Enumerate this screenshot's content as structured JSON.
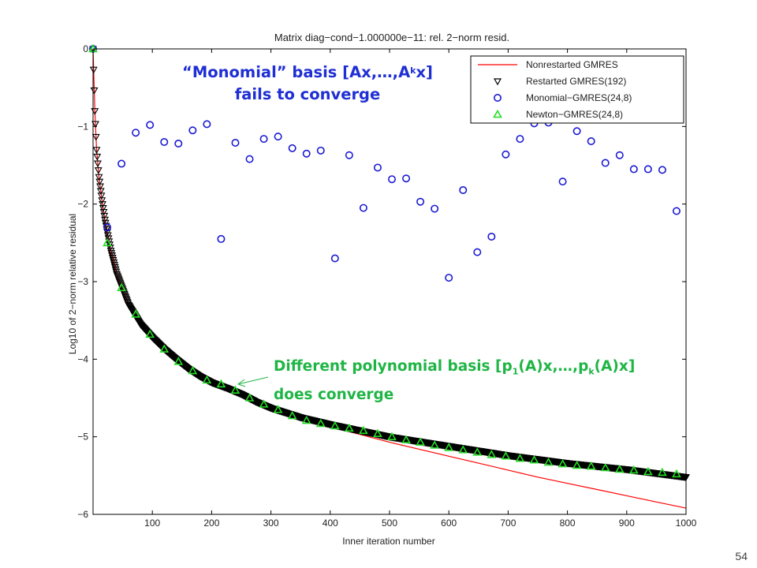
{
  "slide_number": "54",
  "annotations": {
    "monomial_line1_pre": "“Monomial” basis [Ax,…,A",
    "monomial_line1_sup": "k",
    "monomial_line1_post": "x]",
    "monomial_line2": "fails to converge",
    "newton_line1_pre": "Different polynomial basis  [p",
    "newton_line1_sub1": "1",
    "newton_line1_mid": "(A)x,…,p",
    "newton_line1_sub2": "k",
    "newton_line1_post": "(A)x]",
    "newton_line2": "does converge"
  },
  "colors": {
    "nonrestarted": "#ff0000",
    "restarted": "#000000",
    "monomial": "#1a1ad4",
    "newton": "#22dd22",
    "monomial_annotation": "#1f2fd4",
    "newton_annotation": "#1fb545"
  },
  "chart_data": {
    "type": "line",
    "title": "Matrix diag−cond−1.000000e−11: rel. 2−norm resid.",
    "xlabel": "Inner iteration number",
    "ylabel": "Log10 of 2−norm relative residual",
    "xlim": [
      0,
      1000
    ],
    "ylim": [
      -6,
      0
    ],
    "xticks": [
      100,
      200,
      300,
      400,
      500,
      600,
      700,
      800,
      900,
      1000
    ],
    "yticks": [
      0,
      -1,
      -2,
      -3,
      -4,
      -5,
      -6
    ],
    "xtick_labels": [
      "100",
      "200",
      "300",
      "400",
      "500",
      "600",
      "700",
      "800",
      "900",
      "1000"
    ],
    "ytick_labels": [
      "0",
      "−1",
      "−2",
      "−3",
      "−4",
      "−5",
      "−6"
    ],
    "grid": false,
    "legend_position": "top-right",
    "series": [
      {
        "name": "Nonrestarted GMRES",
        "marker": "line",
        "x": [
          0,
          3,
          6,
          10,
          15,
          20,
          30,
          40,
          50,
          60,
          80,
          100,
          120,
          140,
          160,
          180,
          200,
          225,
          250,
          275,
          300,
          350,
          400,
          450,
          500,
          550,
          600,
          650,
          700,
          750,
          800,
          850,
          900,
          950,
          1000
        ],
        "y": [
          0,
          -0.8,
          -1.3,
          -1.65,
          -1.95,
          -2.2,
          -2.6,
          -2.9,
          -3.1,
          -3.3,
          -3.55,
          -3.72,
          -3.87,
          -4.0,
          -4.12,
          -4.22,
          -4.3,
          -4.37,
          -4.45,
          -4.55,
          -4.63,
          -4.75,
          -4.87,
          -4.97,
          -5.07,
          -5.16,
          -5.25,
          -5.34,
          -5.43,
          -5.52,
          -5.6,
          -5.68,
          -5.76,
          -5.84,
          -5.92
        ]
      },
      {
        "name": "Restarted GMRES(192)",
        "marker": "triangle-down",
        "x": [
          0,
          3,
          6,
          10,
          15,
          20,
          30,
          40,
          50,
          60,
          80,
          100,
          120,
          140,
          160,
          180,
          200,
          225,
          250,
          275,
          300,
          350,
          400,
          450,
          500,
          550,
          600,
          650,
          700,
          750,
          800,
          850,
          900,
          950,
          1000
        ],
        "y": [
          0,
          -0.8,
          -1.3,
          -1.65,
          -1.95,
          -2.2,
          -2.6,
          -2.9,
          -3.1,
          -3.3,
          -3.55,
          -3.72,
          -3.87,
          -4.0,
          -4.12,
          -4.22,
          -4.3,
          -4.37,
          -4.45,
          -4.55,
          -4.63,
          -4.75,
          -4.84,
          -4.92,
          -5.0,
          -5.06,
          -5.12,
          -5.18,
          -5.24,
          -5.29,
          -5.34,
          -5.38,
          -5.42,
          -5.47,
          -5.52
        ]
      },
      {
        "name": "Monomial−GMRES(24,8)",
        "marker": "circle",
        "x": [
          0,
          24,
          48,
          72,
          96,
          120,
          144,
          168,
          192,
          216,
          240,
          264,
          288,
          312,
          336,
          360,
          384,
          408,
          432,
          456,
          480,
          504,
          528,
          552,
          576,
          600,
          624,
          648,
          672,
          696,
          720,
          744,
          768,
          792,
          816,
          840,
          864,
          888,
          912,
          936,
          960,
          984
        ],
        "y": [
          0,
          -2.3,
          -1.48,
          -1.08,
          -0.98,
          -1.2,
          -1.22,
          -1.05,
          -0.97,
          -2.45,
          -1.21,
          -1.42,
          -1.16,
          -1.13,
          -1.28,
          -1.35,
          -1.31,
          -2.7,
          -1.37,
          -2.05,
          -1.53,
          -1.68,
          -1.67,
          -1.97,
          -2.06,
          -2.95,
          -1.82,
          -2.62,
          -2.42,
          -1.36,
          -1.16,
          -0.96,
          -0.95,
          -1.71,
          -1.06,
          -1.19,
          -1.47,
          -1.37,
          -1.55,
          -1.55,
          -1.56,
          -2.09
        ]
      },
      {
        "name": "Newton−GMRES(24,8)",
        "marker": "triangle-up",
        "x": [
          0,
          24,
          48,
          72,
          96,
          120,
          144,
          168,
          192,
          216,
          240,
          264,
          288,
          312,
          336,
          360,
          384,
          408,
          432,
          456,
          480,
          504,
          528,
          552,
          576,
          600,
          624,
          648,
          672,
          696,
          720,
          744,
          768,
          792,
          816,
          840,
          864,
          888,
          912,
          936,
          960,
          984
        ],
        "y": [
          0,
          -2.5,
          -3.08,
          -3.42,
          -3.68,
          -3.87,
          -4.03,
          -4.15,
          -4.27,
          -4.32,
          -4.4,
          -4.5,
          -4.58,
          -4.65,
          -4.73,
          -4.79,
          -4.83,
          -4.86,
          -4.89,
          -4.92,
          -4.96,
          -5.0,
          -5.04,
          -5.07,
          -5.11,
          -5.14,
          -5.17,
          -5.2,
          -5.23,
          -5.25,
          -5.28,
          -5.3,
          -5.33,
          -5.35,
          -5.37,
          -5.38,
          -5.4,
          -5.42,
          -5.43,
          -5.45,
          -5.46,
          -5.48
        ]
      }
    ]
  }
}
